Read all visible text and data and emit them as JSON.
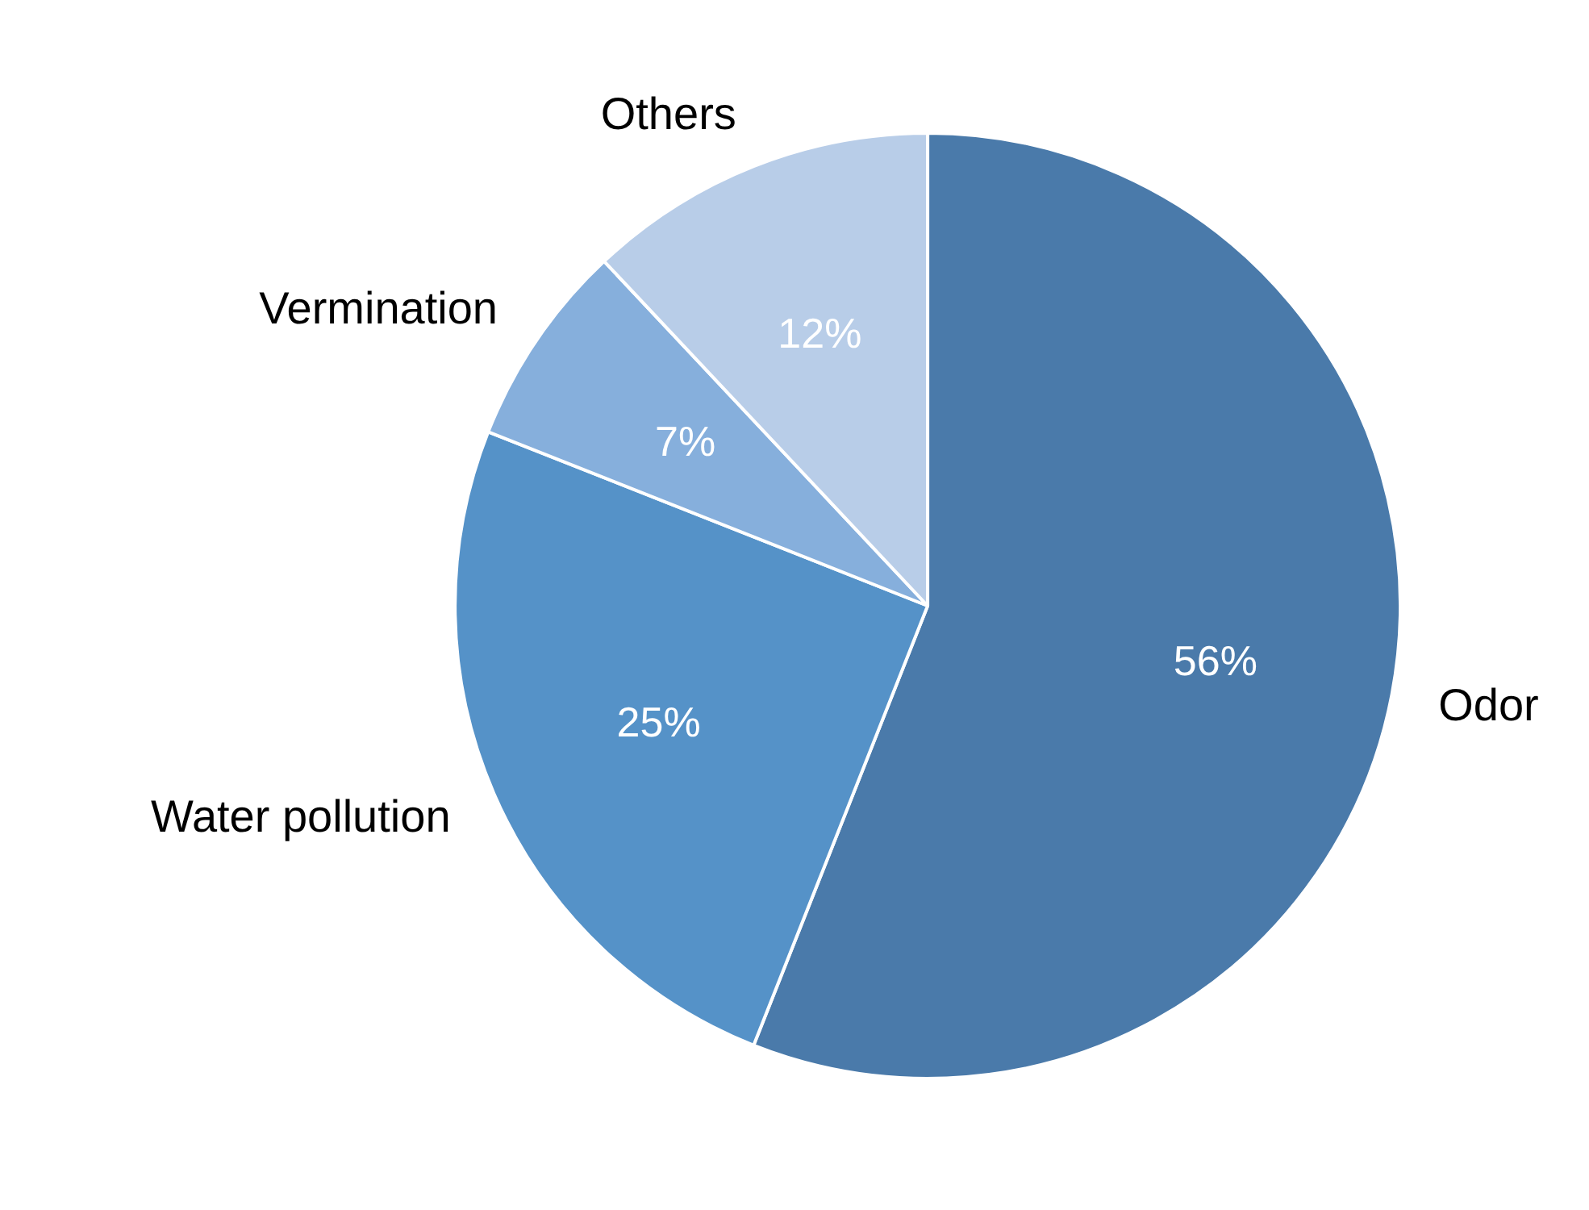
{
  "chart_data": {
    "type": "pie",
    "categories": [
      "Odor",
      "Water pollution",
      "Vermination",
      "Others"
    ],
    "values": [
      56,
      25,
      7,
      12
    ],
    "value_labels": [
      "56%",
      "25%",
      "7%",
      "12%"
    ],
    "colors": [
      "#4a7aaa",
      "#5592c8",
      "#86afdc",
      "#b8cde8"
    ]
  }
}
